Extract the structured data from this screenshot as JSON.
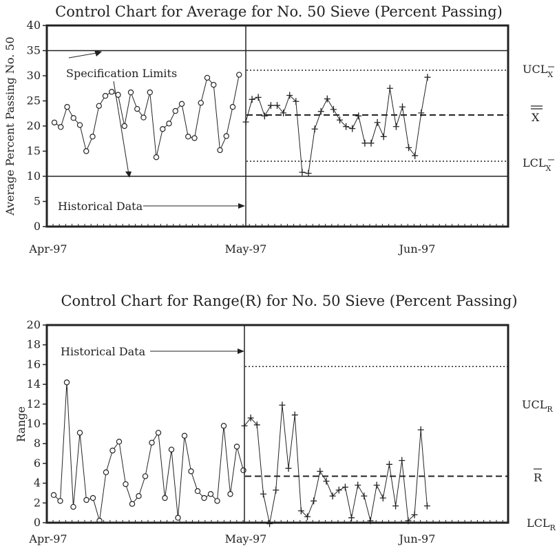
{
  "chart_data": [
    {
      "type": "line",
      "title": "Control Chart for Average for No. 50 Sieve (Percent Passing)",
      "ylabel": "Average Percent Passing No. 50",
      "ylim": [
        0,
        40
      ],
      "yticks": [
        "0",
        "5",
        "10",
        "15",
        "20",
        "25",
        "30",
        "35",
        "40"
      ],
      "xtick_labels": [
        "Apr-97",
        "May-97",
        "Jun-97"
      ],
      "grid": false,
      "series": [
        {
          "marker": "circle",
          "values": [
            20.7,
            19.8,
            23.8,
            21.6,
            20.2,
            15.0,
            17.9,
            24.0,
            26.0,
            26.8,
            26.2,
            20.0,
            26.7,
            23.4,
            21.7,
            26.7,
            13.8,
            19.4,
            20.5,
            23.0,
            24.4,
            17.9,
            17.6,
            24.6,
            29.6,
            28.2,
            15.2,
            18.0,
            23.8,
            30.2
          ]
        },
        {
          "marker": "plus",
          "values": [
            20.8,
            25.3,
            25.7,
            22.0,
            24.1,
            24.1,
            22.6,
            26.1,
            24.9,
            10.8,
            10.6,
            19.4,
            22.9,
            25.4,
            23.3,
            21.2,
            19.9,
            19.5,
            22.0,
            16.6,
            16.6,
            20.7,
            17.9,
            27.5,
            19.9,
            23.8,
            15.7,
            14.1,
            22.6,
            29.7
          ]
        }
      ],
      "spec_limits": {
        "upper": 35,
        "lower": 10
      },
      "control_limits": {
        "ucl": 31.1,
        "center": 22.2,
        "lcl": 13.0
      },
      "labels": {
        "ucl": "UCL",
        "ucl_sub": "X",
        "center": "X",
        "lcl": "LCL",
        "lcl_sub": "X"
      },
      "annotations": {
        "spec": "Specification Limits",
        "historical": "Historical Data"
      }
    },
    {
      "type": "line",
      "title": "Control Chart for Range(R) for No. 50 Sieve (Percent Passing)",
      "ylabel": "Range",
      "ylim": [
        0,
        20
      ],
      "yticks": [
        "0",
        "2",
        "4",
        "6",
        "8",
        "10",
        "12",
        "14",
        "16",
        "18",
        "20"
      ],
      "xtick_labels": [
        "Apr-97",
        "May-97",
        "Jun-97"
      ],
      "grid": false,
      "series": [
        {
          "marker": "circle",
          "values": [
            2.8,
            2.2,
            14.2,
            1.6,
            9.1,
            2.3,
            2.5,
            0.2,
            5.1,
            7.3,
            8.2,
            3.9,
            1.9,
            2.7,
            4.7,
            8.1,
            9.1,
            2.5,
            7.4,
            0.5,
            8.8,
            5.2,
            3.2,
            2.5,
            2.9,
            2.2,
            9.8,
            2.9,
            7.7,
            5.3
          ]
        },
        {
          "marker": "plus",
          "values": [
            9.8,
            10.6,
            9.9,
            2.9,
            -0.1,
            3.3,
            11.9,
            5.5,
            10.9,
            1.2,
            0.6,
            2.2,
            5.2,
            4.2,
            2.7,
            3.3,
            3.6,
            0.5,
            3.8,
            2.7,
            0.2,
            3.8,
            2.5,
            5.9,
            1.7,
            6.3,
            0.2,
            0.8,
            9.4,
            1.7
          ]
        }
      ],
      "control_limits": {
        "ucl": 15.8,
        "center": 4.7,
        "lcl": 0
      },
      "labels": {
        "ucl": "UCL",
        "ucl_sub": "R",
        "center": "R",
        "lcl": "LCL",
        "lcl_sub": "R"
      },
      "annotations": {
        "historical": "Historical Data"
      }
    }
  ]
}
